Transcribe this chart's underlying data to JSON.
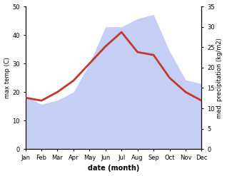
{
  "months": [
    "Jan",
    "Feb",
    "Mar",
    "Apr",
    "May",
    "Jun",
    "Jul",
    "Aug",
    "Sep",
    "Oct",
    "Nov",
    "Dec"
  ],
  "temperature": [
    18,
    17,
    20,
    24,
    30,
    36,
    41,
    34,
    33,
    25,
    20,
    17
  ],
  "precipitation": [
    13,
    11,
    12,
    14,
    21,
    30,
    30,
    32,
    33,
    24,
    17,
    16
  ],
  "temp_ylim": [
    0,
    50
  ],
  "precip_ylim": [
    0,
    35
  ],
  "temp_color": "#c0392b",
  "precip_fill_color": "#c5cef5",
  "xlabel": "date (month)",
  "ylabel_left": "max temp (C)",
  "ylabel_right": "med. precipitation (kg/m2)",
  "temp_yticks": [
    0,
    10,
    20,
    30,
    40,
    50
  ],
  "precip_yticks": [
    0,
    5,
    10,
    15,
    20,
    25,
    30,
    35
  ],
  "background_color": "#ffffff",
  "line_width": 2.0
}
